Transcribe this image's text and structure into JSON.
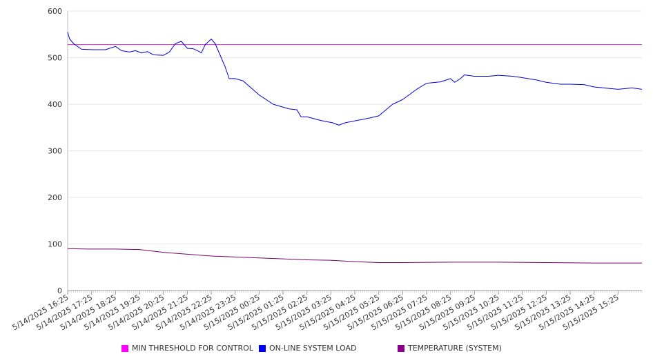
{
  "chart_data": {
    "type": "line",
    "title": "",
    "xlabel": "",
    "ylabel": "",
    "ylim": [
      0,
      600
    ],
    "yticks": [
      0,
      100,
      200,
      300,
      400,
      500,
      600
    ],
    "grid": "horizontal",
    "legend_position": "bottom",
    "x_start": "5/14/2025 16:25",
    "x_end": "5/15/2025 16:25",
    "x_ticks": [
      "5/14/2025 16:25",
      "5/14/2025 17:25",
      "5/14/2025 18:25",
      "5/14/2025 19:25",
      "5/14/2025 20:25",
      "5/14/2025 21:25",
      "5/14/2025 22:25",
      "5/14/2025 23:25",
      "5/15/2025 00:25",
      "5/15/2025 01:25",
      "5/15/2025 02:25",
      "5/15/2025 03:25",
      "5/15/2025 04:25",
      "5/15/2025 05:25",
      "5/15/2025 06:25",
      "5/15/2025 07:25",
      "5/15/2025 08:25",
      "5/15/2025 09:25",
      "5/15/2025 10:25",
      "5/15/2025 11:25",
      "5/15/2025 12:25",
      "5/15/2025 13:25",
      "5/15/2025 14:25",
      "5/15/2025 15:25"
    ],
    "series": [
      {
        "name": "MIN THRESHOLD FOR CONTROL",
        "color": "#CC33CC",
        "legend_color": "#FF00FF",
        "x": [
          "5/14/2025 16:25",
          "5/15/2025 16:25"
        ],
        "y": [
          528,
          528
        ]
      },
      {
        "name": "ON-LINE SYSTEM LOAD",
        "color": "#0000DD",
        "legend_color": "#0000FF",
        "x": [
          "5/14/2025 16:25",
          "5/14/2025 16:30",
          "5/14/2025 16:40",
          "5/14/2025 17:00",
          "5/14/2025 17:30",
          "5/14/2025 18:00",
          "5/14/2025 18:10",
          "5/14/2025 18:25",
          "5/14/2025 18:40",
          "5/14/2025 19:00",
          "5/14/2025 19:15",
          "5/14/2025 19:30",
          "5/14/2025 19:45",
          "5/14/2025 20:00",
          "5/14/2025 20:25",
          "5/14/2025 20:40",
          "5/14/2025 20:55",
          "5/14/2025 21:10",
          "5/14/2025 21:25",
          "5/14/2025 21:40",
          "5/14/2025 21:55",
          "5/14/2025 22:00",
          "5/14/2025 22:10",
          "5/14/2025 22:25",
          "5/14/2025 22:35",
          "5/14/2025 22:50",
          "5/14/2025 23:00",
          "5/14/2025 23:10",
          "5/14/2025 23:25",
          "5/14/2025 23:45",
          "5/15/2025 00:25",
          "5/15/2025 01:00",
          "5/15/2025 01:40",
          "5/15/2025 02:00",
          "5/15/2025 02:10",
          "5/15/2025 02:25",
          "5/15/2025 03:00",
          "5/15/2025 03:30",
          "5/15/2025 03:45",
          "5/15/2025 04:00",
          "5/15/2025 04:30",
          "5/15/2025 05:00",
          "5/15/2025 05:25",
          "5/15/2025 06:00",
          "5/15/2025 06:25",
          "5/15/2025 07:00",
          "5/15/2025 07:25",
          "5/15/2025 08:00",
          "5/15/2025 08:25",
          "5/15/2025 08:35",
          "5/15/2025 08:50",
          "5/15/2025 09:00",
          "5/15/2025 09:25",
          "5/15/2025 10:00",
          "5/15/2025 10:25",
          "5/15/2025 11:00",
          "5/15/2025 11:25",
          "5/15/2025 12:00",
          "5/15/2025 12:25",
          "5/15/2025 13:00",
          "5/15/2025 13:25",
          "5/15/2025 14:00",
          "5/15/2025 14:25",
          "5/15/2025 15:00",
          "5/15/2025 15:25",
          "5/15/2025 16:00",
          "5/15/2025 16:25"
        ],
        "y": [
          555,
          540,
          530,
          518,
          517,
          517,
          520,
          524,
          515,
          512,
          515,
          510,
          513,
          506,
          505,
          512,
          530,
          535,
          520,
          519,
          513,
          510,
          528,
          540,
          530,
          500,
          480,
          455,
          455,
          450,
          420,
          400,
          390,
          388,
          373,
          373,
          365,
          360,
          355,
          360,
          365,
          370,
          375,
          400,
          410,
          432,
          445,
          448,
          455,
          447,
          455,
          463,
          460,
          460,
          462,
          460,
          457,
          452,
          447,
          443,
          443,
          442,
          437,
          434,
          432,
          435,
          432
        ]
      },
      {
        "name": "TEMPERATURE (SYSTEM)",
        "color": "#770066",
        "legend_color": "#880088",
        "x": [
          "5/14/2025 16:25",
          "5/14/2025 17:25",
          "5/14/2025 18:25",
          "5/14/2025 19:25",
          "5/14/2025 20:25",
          "5/14/2025 21:25",
          "5/14/2025 22:25",
          "5/14/2025 23:25",
          "5/15/2025 00:25",
          "5/15/2025 01:25",
          "5/15/2025 02:25",
          "5/15/2025 03:25",
          "5/15/2025 04:25",
          "5/15/2025 05:25",
          "5/15/2025 06:25",
          "5/15/2025 08:25",
          "5/15/2025 10:25",
          "5/15/2025 12:25",
          "5/15/2025 14:25",
          "5/15/2025 16:25"
        ],
        "y": [
          90,
          89,
          89,
          88,
          82,
          78,
          74,
          72,
          70,
          68,
          66,
          65,
          62,
          60,
          60,
          61,
          61,
          60,
          59,
          59
        ]
      }
    ]
  }
}
